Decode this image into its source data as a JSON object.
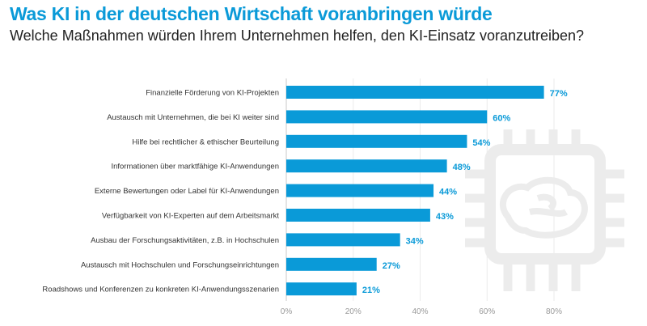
{
  "title": "Was KI in der deutschen Wirtschaft voranbringen würde",
  "subtitle": "Welche Maßnahmen würden Ihrem Unternehmen helfen, den KI-Einsatz voranzutreiben?",
  "watermark_icon": "chip-brain-icon",
  "chart_data": {
    "type": "bar",
    "orientation": "horizontal",
    "title": "Was KI in der deutschen Wirtschaft voranbringen würde",
    "subtitle": "Welche Maßnahmen würden Ihrem Unternehmen helfen, den KI-Einsatz voranzutreiben?",
    "categories": [
      "Finanzielle Förderung von KI-Projekten",
      "Austausch mit Unternehmen, die bei KI weiter sind",
      "Hilfe bei rechtlicher & ethischer Beurteilung",
      "Informationen über marktfähige KI-Anwendungen",
      "Externe Bewertungen oder Label für KI-Anwendungen",
      "Verfügbarkeit von KI-Experten auf dem Arbeitsmarkt",
      "Ausbau der Forschungsaktivitäten, z.B. in Hochschulen",
      "Austausch mit Hochschulen und Forschungseinrichtungen",
      "Roadshows und Konferenzen zu konkreten KI-Anwendungsszenarien"
    ],
    "values": [
      77,
      60,
      54,
      48,
      44,
      43,
      34,
      27,
      21
    ],
    "data_labels": [
      "77%",
      "60%",
      "54%",
      "48%",
      "44%",
      "43%",
      "34%",
      "27%",
      "21%"
    ],
    "xlim": [
      0,
      80
    ],
    "xticks": [
      0,
      20,
      40,
      60,
      80
    ],
    "xtick_labels": [
      "0%",
      "20%",
      "40%",
      "60%",
      "80%"
    ],
    "grid": true,
    "bar_color": "#0a9ad8",
    "label_color": "#0a9ad8"
  }
}
